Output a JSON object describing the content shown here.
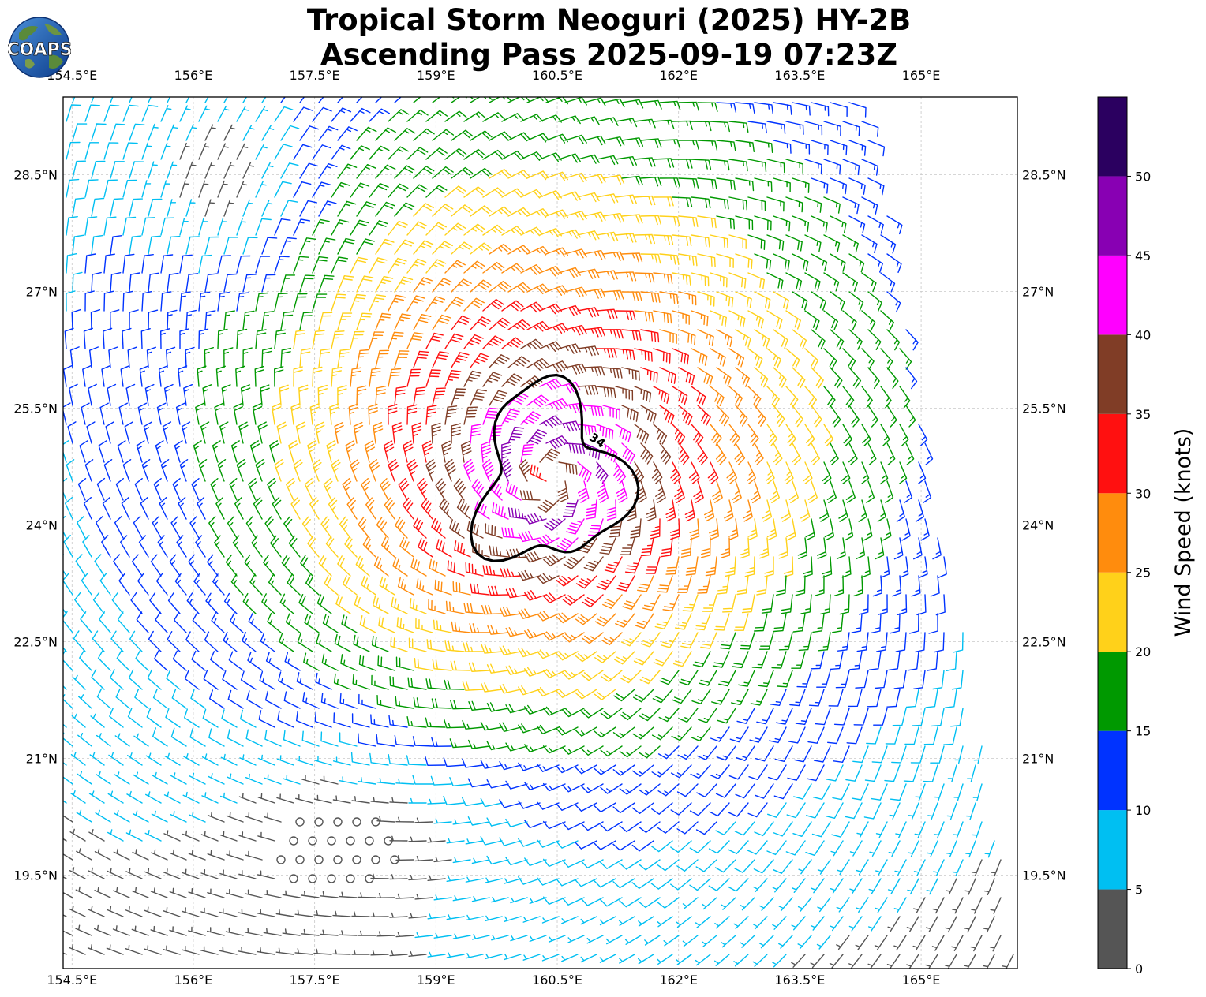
{
  "header": {
    "title_line1": "Tropical Storm Neoguri (2025) HY-2B",
    "title_line2": "Ascending Pass 2025-09-19 07:23Z",
    "logo_text": "COAPS"
  },
  "chart_data": {
    "type": "wind-barb map",
    "x_ticks": [
      "154.5°E",
      "156°E",
      "157.5°E",
      "159°E",
      "160.5°E",
      "162°E",
      "163.5°E",
      "165°E"
    ],
    "x_tick_values": [
      154.5,
      156,
      157.5,
      159,
      160.5,
      162,
      163.5,
      165
    ],
    "y_ticks": [
      "28.5°N",
      "27°N",
      "25.5°N",
      "24°N",
      "22.5°N",
      "21°N",
      "19.5°N"
    ],
    "y_tick_values": [
      28.5,
      27,
      25.5,
      24,
      22.5,
      21,
      19.5
    ],
    "lon_range": [
      154.39,
      166.19
    ],
    "lat_range": [
      18.3,
      29.5
    ],
    "grid": true,
    "storm_center": {
      "lon": 160.4,
      "lat": 24.6
    },
    "contour": {
      "label": "34",
      "value_knots": 34
    },
    "colorbar": {
      "label": "Wind Speed (knots)",
      "ticks": [
        "0",
        "5",
        "10",
        "15",
        "20",
        "25",
        "30",
        "35",
        "40",
        "45",
        "50"
      ],
      "bins": [
        {
          "min": 0,
          "max": 5,
          "color": "#555555"
        },
        {
          "min": 5,
          "max": 10,
          "color": "#00bff2"
        },
        {
          "min": 10,
          "max": 15,
          "color": "#0033ff"
        },
        {
          "min": 15,
          "max": 20,
          "color": "#009900"
        },
        {
          "min": 20,
          "max": 25,
          "color": "#ffd11a"
        },
        {
          "min": 25,
          "max": 30,
          "color": "#ff8c0d"
        },
        {
          "min": 30,
          "max": 35,
          "color": "#ff1010"
        },
        {
          "min": 35,
          "max": 40,
          "color": "#803d26"
        },
        {
          "min": 40,
          "max": 45,
          "color": "#ff00ff"
        },
        {
          "min": 45,
          "max": 50,
          "color": "#8800b3"
        },
        {
          "min": 50,
          "max": 55,
          "color": "#2b0060"
        }
      ]
    }
  }
}
